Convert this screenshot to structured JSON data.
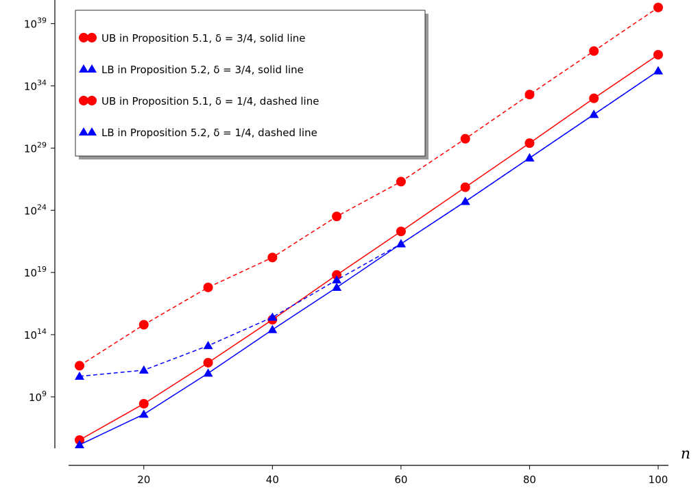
{
  "chart_data": {
    "type": "line",
    "x_label": "n",
    "x": [
      10,
      20,
      30,
      40,
      50,
      60,
      70,
      80,
      90,
      100
    ],
    "series": [
      {
        "name": "UB in Proposition 5.1, δ = 3/4, solid line",
        "color": "#ff0000",
        "marker": "circle",
        "linestyle": "solid",
        "values": [
          340000.0,
          280000000.0,
          560000000000.0,
          1600000000000000.0,
          6.3e+18,
          2e+22,
          7.1e+25,
          2.5e+29,
          1e+33,
          3.2e+36
        ]
      },
      {
        "name": "LB in Proposition 5.2, δ = 3/4, solid line",
        "color": "#0000ff",
        "marker": "triangle",
        "linestyle": "solid",
        "values": [
          140000.0,
          40000000.0,
          79000000000.0,
          250000000000000.0,
          6.3e+17,
          2e+21,
          5e+24,
          1.6e+28,
          5e+31,
          1.6e+35
        ]
      },
      {
        "name": "UB in Proposition 5.1, δ = 1/4, dashed line",
        "color": "#ff0000",
        "marker": "circle",
        "linestyle": "dashed",
        "values": [
          320000000000.0,
          630000000000000.0,
          6.3e+17,
          1.6e+20,
          3.2e+23,
          2e+26,
          5.6e+29,
          2e+33,
          6.3e+36,
          2e+40
        ]
      },
      {
        "name": "LB in Proposition 5.2, δ = 1/4, dashed line",
        "color": "#0000ff",
        "marker": "triangle",
        "linestyle": "dashed",
        "values": [
          45000000000.0,
          140000000000.0,
          13000000000000.0,
          2500000000000000.0,
          2.5e+18,
          2e+21,
          5e+24,
          1.6e+28,
          5e+31,
          1.6e+35
        ]
      }
    ],
    "xlim": [
      8.3,
      101.6
    ],
    "xticks": [
      20,
      40,
      60,
      80,
      100
    ],
    "ylim": [
      74000.0,
      8e+40
    ],
    "y_log": true,
    "yticks": [
      {
        "value": 1000000000.0,
        "label": "10",
        "exponent": "9"
      },
      {
        "value": 100000000000000.0,
        "label": "10",
        "exponent": "14"
      },
      {
        "value": 1e+19,
        "label": "10",
        "exponent": "19"
      },
      {
        "value": 1e+24,
        "label": "10",
        "exponent": "24"
      },
      {
        "value": 1e+29,
        "label": "10",
        "exponent": "29"
      },
      {
        "value": 1e+34,
        "label": "10",
        "exponent": "34"
      },
      {
        "value": 1e+39,
        "label": "10",
        "exponent": "39"
      }
    ],
    "legend": "upper left"
  }
}
